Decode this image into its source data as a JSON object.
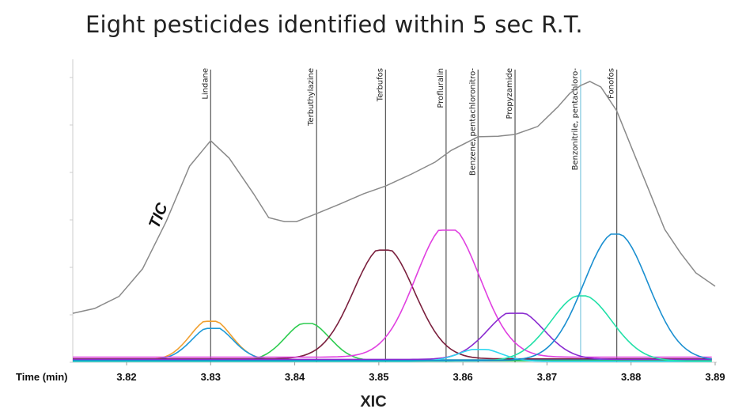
{
  "title": "Eight pesticides identified within 5 sec R.T.",
  "chart_data": {
    "type": "line",
    "title": "Eight pesticides identified within 5 sec R.T.",
    "xlabel": "Time (min)",
    "bottom_label": "XIC",
    "tic_label": "TIC",
    "xlim": [
      3.8136,
      3.89
    ],
    "ylim": [
      0,
      106
    ],
    "x_ticks": [
      "3.82",
      "3.83",
      "3.84",
      "3.85",
      "3.86",
      "3.87",
      "3.88",
      "3.89"
    ],
    "y_tick_labels_shown": false,
    "grid": false,
    "tic": {
      "name": "TIC",
      "color": "#8a8a8a",
      "x": [
        3.8136,
        3.8162,
        3.8191,
        3.8219,
        3.8247,
        3.8275,
        3.83,
        3.8322,
        3.8351,
        3.8369,
        3.8388,
        3.8402,
        3.8426,
        3.8454,
        3.8482,
        3.8508,
        3.8539,
        3.8567,
        3.8586,
        3.8618,
        3.8642,
        3.8662,
        3.8689,
        3.8713,
        3.8727,
        3.874,
        3.8751,
        3.8764,
        3.8783,
        3.8802,
        3.8821,
        3.884,
        3.8859,
        3.8877,
        3.89
      ],
      "y": [
        17.2,
        18.9,
        23.1,
        32.8,
        49.4,
        68.9,
        77.8,
        71.7,
        59.2,
        50.8,
        49.4,
        49.4,
        52.2,
        55.6,
        59.2,
        61.9,
        66.1,
        70.3,
        74.4,
        79.2,
        79.4,
        80.0,
        82.8,
        89.7,
        94.4,
        97.2,
        98.6,
        96.7,
        88.3,
        74.4,
        60.6,
        46.7,
        38.3,
        31.4,
        26.7
      ]
    },
    "xic_peaks": [
      {
        "color": "#f0a030",
        "center": 3.83,
        "apex": 14.4,
        "sigma": 0.0024,
        "baseline": 0.8
      },
      {
        "color": "#1f9ad8",
        "center": 3.8302,
        "apex": 11.9,
        "sigma": 0.0024,
        "baseline": 0.8
      },
      {
        "color": "#2ecc50",
        "center": 3.8415,
        "apex": 13.6,
        "sigma": 0.0026,
        "baseline": 0.5
      },
      {
        "color": "#7a1f3d",
        "center": 3.8506,
        "apex": 39.4,
        "sigma": 0.0036,
        "baseline": 1.2
      },
      {
        "color": "#e040e0",
        "center": 3.8582,
        "apex": 46.4,
        "sigma": 0.0038,
        "baseline": 1.8
      },
      {
        "color": "#8a2bd0",
        "center": 3.8663,
        "apex": 17.2,
        "sigma": 0.0033,
        "baseline": 1.0
      },
      {
        "color": "#30d8f0",
        "center": 3.862,
        "apex": 4.5,
        "sigma": 0.0025,
        "baseline": 0.3
      },
      {
        "color": "#22e0a8",
        "center": 3.8741,
        "apex": 23.3,
        "sigma": 0.0036,
        "baseline": 0.4
      },
      {
        "color": "#1a8fd0",
        "center": 3.8782,
        "apex": 45.0,
        "sigma": 0.0038,
        "baseline": 0.6
      }
    ],
    "markers": [
      {
        "label": "Lindane",
        "x": 3.83,
        "color": "#555555"
      },
      {
        "label": "Terbuthylazine",
        "x": 3.8426,
        "color": "#555555"
      },
      {
        "label": "Terbufos",
        "x": 3.8508,
        "color": "#555555"
      },
      {
        "label": "Profluralin",
        "x": 3.858,
        "color": "#555555"
      },
      {
        "label": "Benzene, pentachloronitro-",
        "x": 3.8618,
        "color": "#555555"
      },
      {
        "label": "Propyzamide",
        "x": 3.8662,
        "color": "#555555"
      },
      {
        "label": "Benzonitrile, pentachloro-",
        "x": 3.874,
        "color": "#7fc8e0"
      },
      {
        "label": "Fonofos",
        "x": 3.8783,
        "color": "#555555"
      }
    ]
  }
}
